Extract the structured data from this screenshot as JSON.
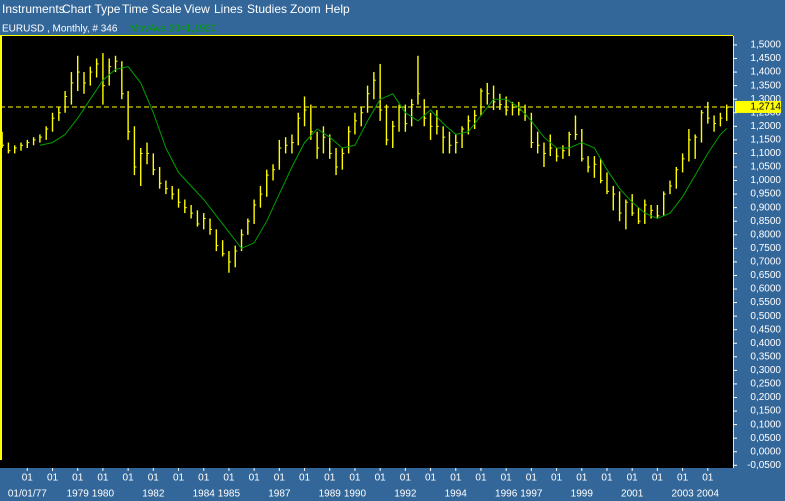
{
  "menu": {
    "items": [
      "Instruments",
      "Chart Type",
      "Time Scale",
      "View",
      "Lines",
      "Studies",
      "Zoom",
      "Help"
    ]
  },
  "chart_data": {
    "type": "ohlc",
    "title": "EURUSD , Monthly, # 346",
    "color": "#ffff00",
    "x": [
      0,
      3,
      6,
      9,
      12,
      15,
      18,
      21,
      24,
      27,
      30,
      33,
      36,
      39,
      42,
      45,
      48,
      51,
      54,
      57,
      60,
      63,
      66,
      69,
      72,
      75,
      78,
      81,
      84,
      87,
      90,
      93,
      96,
      99,
      102,
      105,
      108,
      111,
      114,
      117,
      120,
      123,
      126,
      129,
      132,
      135,
      138,
      141,
      144,
      147,
      150,
      153,
      156,
      159,
      162,
      165,
      168,
      171,
      174,
      177,
      180,
      183,
      186,
      189,
      192,
      195,
      198,
      201,
      204,
      207,
      210,
      213,
      216,
      219,
      222,
      225,
      228,
      231,
      234,
      237,
      240,
      243,
      246,
      249,
      252,
      255,
      258,
      261,
      264,
      267,
      270,
      273,
      276,
      279,
      282,
      285,
      288,
      291,
      294,
      297,
      300,
      303,
      306,
      309,
      312,
      315,
      318,
      321,
      324,
      327,
      330,
      333,
      336,
      339,
      342,
      345
    ],
    "high": [
      1.18,
      1.14,
      1.13,
      1.14,
      1.15,
      1.16,
      1.17,
      1.2,
      1.25,
      1.27,
      1.33,
      1.4,
      1.46,
      1.4,
      1.42,
      1.45,
      1.47,
      1.45,
      1.46,
      1.44,
      1.33,
      1.2,
      1.12,
      1.14,
      1.1,
      1.05,
      1.0,
      0.98,
      0.97,
      0.93,
      0.91,
      0.89,
      0.88,
      0.86,
      0.82,
      0.78,
      0.74,
      0.76,
      0.82,
      0.86,
      0.93,
      0.98,
      1.04,
      1.06,
      1.15,
      1.16,
      1.17,
      1.25,
      1.31,
      1.28,
      1.18,
      1.2,
      1.17,
      1.12,
      1.12,
      1.2,
      1.25,
      1.27,
      1.35,
      1.4,
      1.43,
      1.28,
      1.22,
      1.28,
      1.28,
      1.3,
      1.46,
      1.3,
      1.25,
      1.26,
      1.2,
      1.18,
      1.17,
      1.2,
      1.24,
      1.26,
      1.34,
      1.36,
      1.35,
      1.32,
      1.31,
      1.29,
      1.29,
      1.28,
      1.25,
      1.18,
      1.14,
      1.17,
      1.12,
      1.13,
      1.18,
      1.24,
      1.19,
      1.09,
      1.09,
      1.08,
      1.03,
      0.98,
      0.96,
      0.93,
      0.95,
      0.9,
      0.93,
      0.91,
      0.91,
      0.96,
      1.0,
      1.05,
      1.1,
      1.19,
      1.17,
      1.26,
      1.29,
      1.24,
      1.25,
      1.28
    ],
    "low": [
      1.12,
      1.1,
      1.1,
      1.11,
      1.12,
      1.13,
      1.14,
      1.15,
      1.18,
      1.22,
      1.25,
      1.28,
      1.33,
      1.32,
      1.35,
      1.38,
      1.28,
      1.35,
      1.4,
      1.3,
      1.15,
      1.02,
      0.98,
      1.06,
      1.02,
      0.97,
      0.95,
      0.93,
      0.9,
      0.88,
      0.86,
      0.83,
      0.82,
      0.8,
      0.74,
      0.72,
      0.66,
      0.68,
      0.74,
      0.8,
      0.84,
      0.9,
      0.94,
      1.0,
      1.04,
      1.1,
      1.1,
      1.13,
      1.2,
      1.15,
      1.08,
      1.1,
      1.08,
      1.02,
      1.04,
      1.1,
      1.17,
      1.2,
      1.25,
      1.3,
      1.22,
      1.13,
      1.12,
      1.18,
      1.18,
      1.2,
      1.28,
      1.2,
      1.15,
      1.17,
      1.1,
      1.1,
      1.1,
      1.12,
      1.17,
      1.19,
      1.24,
      1.28,
      1.26,
      1.26,
      1.24,
      1.24,
      1.24,
      1.22,
      1.12,
      1.1,
      1.05,
      1.09,
      1.07,
      1.08,
      1.09,
      1.15,
      1.07,
      1.03,
      1.01,
      0.99,
      0.95,
      0.89,
      0.85,
      0.82,
      0.87,
      0.84,
      0.84,
      0.86,
      0.86,
      0.87,
      0.95,
      0.97,
      1.03,
      1.07,
      1.08,
      1.14,
      1.21,
      1.18,
      1.2,
      1.22
    ],
    "close": [
      1.13,
      1.11,
      1.12,
      1.13,
      1.14,
      1.15,
      1.16,
      1.19,
      1.23,
      1.25,
      1.31,
      1.36,
      1.4,
      1.36,
      1.4,
      1.43,
      1.35,
      1.42,
      1.44,
      1.32,
      1.18,
      1.05,
      1.1,
      1.1,
      1.04,
      0.99,
      0.97,
      0.95,
      0.92,
      0.9,
      0.88,
      0.84,
      0.86,
      0.82,
      0.76,
      0.73,
      0.7,
      0.74,
      0.8,
      0.85,
      0.91,
      0.95,
      1.02,
      1.04,
      1.12,
      1.13,
      1.14,
      1.23,
      1.26,
      1.18,
      1.12,
      1.16,
      1.1,
      1.05,
      1.1,
      1.18,
      1.22,
      1.25,
      1.32,
      1.37,
      1.26,
      1.15,
      1.2,
      1.27,
      1.21,
      1.28,
      1.32,
      1.23,
      1.2,
      1.2,
      1.16,
      1.13,
      1.14,
      1.19,
      1.22,
      1.24,
      1.33,
      1.32,
      1.29,
      1.28,
      1.26,
      1.27,
      1.26,
      1.24,
      1.14,
      1.13,
      1.1,
      1.12,
      1.09,
      1.11,
      1.17,
      1.17,
      1.08,
      1.05,
      1.06,
      1.0,
      0.96,
      0.95,
      0.88,
      0.92,
      0.88,
      0.85,
      0.91,
      0.89,
      0.87,
      0.95,
      0.98,
      1.04,
      1.08,
      1.15,
      1.16,
      1.25,
      1.23,
      1.21,
      1.23,
      1.27
    ],
    "moving_average": {
      "label": "MovAve 20=1,1920",
      "color": "#00a000",
      "x": [
        18,
        24,
        30,
        36,
        42,
        48,
        54,
        60,
        66,
        72,
        78,
        84,
        90,
        96,
        102,
        108,
        114,
        120,
        126,
        132,
        138,
        144,
        150,
        156,
        162,
        168,
        174,
        180,
        186,
        192,
        198,
        204,
        210,
        216,
        222,
        228,
        234,
        240,
        246,
        252,
        258,
        264,
        270,
        276,
        282,
        288,
        294,
        300,
        306,
        312,
        318,
        324,
        330,
        336,
        342,
        345
      ],
      "values": [
        1.13,
        1.14,
        1.17,
        1.23,
        1.3,
        1.37,
        1.41,
        1.42,
        1.36,
        1.25,
        1.12,
        1.03,
        0.98,
        0.93,
        0.87,
        0.81,
        0.75,
        0.77,
        0.85,
        0.95,
        1.05,
        1.14,
        1.19,
        1.16,
        1.12,
        1.13,
        1.22,
        1.3,
        1.32,
        1.25,
        1.22,
        1.26,
        1.21,
        1.17,
        1.18,
        1.24,
        1.3,
        1.3,
        1.27,
        1.22,
        1.16,
        1.12,
        1.12,
        1.14,
        1.12,
        1.04,
        0.97,
        0.92,
        0.88,
        0.86,
        0.88,
        0.94,
        1.02,
        1.1,
        1.17,
        1.192
      ]
    },
    "last_price": {
      "value": 1.2714,
      "label": "1,2714"
    },
    "xlim": [
      -1,
      348
    ],
    "ylim": [
      -0.06,
      1.533
    ],
    "yticks": [
      {
        "value": 1.5,
        "label": "1,5000"
      },
      {
        "value": 1.45,
        "label": "1,4500"
      },
      {
        "value": 1.4,
        "label": "1,4000"
      },
      {
        "value": 1.35,
        "label": "1,3500"
      },
      {
        "value": 1.3,
        "label": "1,3000"
      },
      {
        "value": 1.25,
        "label": "1,2500"
      },
      {
        "value": 1.2,
        "label": "1,2000"
      },
      {
        "value": 1.15,
        "label": "1,1500"
      },
      {
        "value": 1.1,
        "label": "1,1000"
      },
      {
        "value": 1.05,
        "label": "1,0500"
      },
      {
        "value": 1,
        "label": "1,0000"
      },
      {
        "value": 0.95,
        "label": "0,9500"
      },
      {
        "value": 0.9,
        "label": "0,9000"
      },
      {
        "value": 0.85,
        "label": "0,8500"
      },
      {
        "value": 0.8,
        "label": "0,8000"
      },
      {
        "value": 0.75,
        "label": "0,7500"
      },
      {
        "value": 0.7,
        "label": "0,7000"
      },
      {
        "value": 0.65,
        "label": "0,6500"
      },
      {
        "value": 0.6,
        "label": "0,6000"
      },
      {
        "value": 0.55,
        "label": "0,5500"
      },
      {
        "value": 0.5,
        "label": "0,5000"
      },
      {
        "value": 0.45,
        "label": "0,4500"
      },
      {
        "value": 0.4,
        "label": "0,4000"
      },
      {
        "value": 0.35,
        "label": "0,3500"
      },
      {
        "value": 0.3,
        "label": "0,3000"
      },
      {
        "value": 0.25,
        "label": "0,2500"
      },
      {
        "value": 0.2,
        "label": "0,2000"
      },
      {
        "value": 0.15,
        "label": "0,1500"
      },
      {
        "value": 0.1,
        "label": "0,1000"
      },
      {
        "value": 0.05,
        "label": "0,0500"
      },
      {
        "value": 0,
        "label": "0,0000"
      },
      {
        "value": -0.05,
        "label": "-0,0500"
      }
    ],
    "xticks": [
      {
        "value": 12,
        "label": "01"
      },
      {
        "value": 24,
        "label": "01"
      },
      {
        "value": 36,
        "label": "01"
      },
      {
        "value": 48,
        "label": "01"
      },
      {
        "value": 60,
        "label": "01"
      },
      {
        "value": 72,
        "label": "01"
      },
      {
        "value": 84,
        "label": "01"
      },
      {
        "value": 96,
        "label": "01"
      },
      {
        "value": 108,
        "label": "01"
      },
      {
        "value": 120,
        "label": "01"
      },
      {
        "value": 132,
        "label": "01"
      },
      {
        "value": 144,
        "label": "01"
      },
      {
        "value": 156,
        "label": "01"
      },
      {
        "value": 168,
        "label": "01"
      },
      {
        "value": 180,
        "label": "01"
      },
      {
        "value": 192,
        "label": "01"
      },
      {
        "value": 204,
        "label": "01"
      },
      {
        "value": 216,
        "label": "01"
      },
      {
        "value": 228,
        "label": "01"
      },
      {
        "value": 240,
        "label": "01"
      },
      {
        "value": 252,
        "label": "01"
      },
      {
        "value": 264,
        "label": "01"
      },
      {
        "value": 276,
        "label": "01"
      },
      {
        "value": 288,
        "label": "01"
      },
      {
        "value": 300,
        "label": "01"
      },
      {
        "value": 312,
        "label": "01"
      },
      {
        "value": 324,
        "label": "01"
      },
      {
        "value": 336,
        "label": "01"
      }
    ],
    "year_labels": [
      {
        "value": 12,
        "label": "01/01/77"
      },
      {
        "value": 36,
        "label": "1979"
      },
      {
        "value": 48,
        "label": "1980"
      },
      {
        "value": 72,
        "label": "1982"
      },
      {
        "value": 96,
        "label": "1984"
      },
      {
        "value": 108,
        "label": "1985"
      },
      {
        "value": 132,
        "label": "1987"
      },
      {
        "value": 156,
        "label": "1989"
      },
      {
        "value": 168,
        "label": "1990"
      },
      {
        "value": 192,
        "label": "1992"
      },
      {
        "value": 216,
        "label": "1994"
      },
      {
        "value": 240,
        "label": "1996"
      },
      {
        "value": 252,
        "label": "1997"
      },
      {
        "value": 276,
        "label": "1999"
      },
      {
        "value": 300,
        "label": "2001"
      },
      {
        "value": 324,
        "label": "2003"
      },
      {
        "value": 336,
        "label": "2004"
      }
    ]
  }
}
